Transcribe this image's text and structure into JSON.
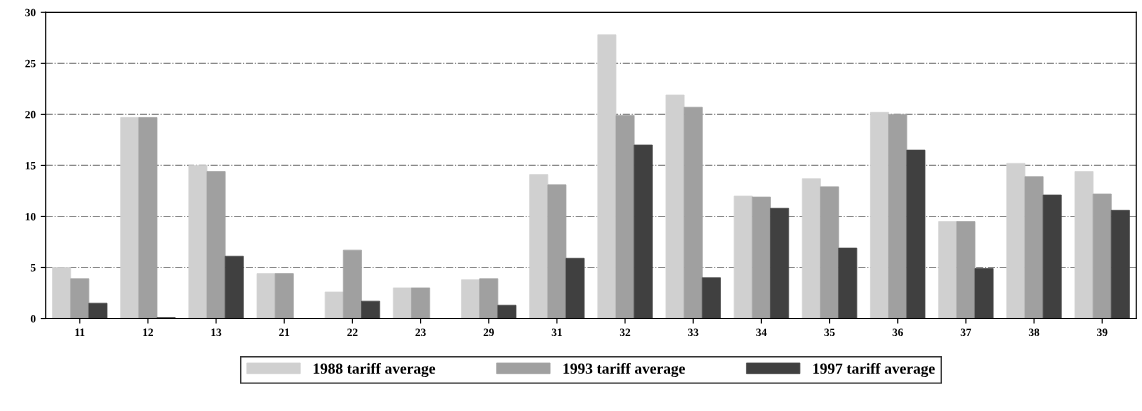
{
  "chart_data": {
    "type": "bar",
    "categories": [
      "11",
      "12",
      "13",
      "21",
      "22",
      "23",
      "29",
      "31",
      "32",
      "33",
      "34",
      "35",
      "36",
      "37",
      "38",
      "39"
    ],
    "series": [
      {
        "name": "1988 tariff average",
        "color": "#d0d0d0",
        "values": [
          5,
          19.7,
          15,
          4.4,
          2.6,
          3,
          3.8,
          14.1,
          27.8,
          21.9,
          12,
          13.7,
          20.2,
          9.5,
          15.2,
          14.4
        ]
      },
      {
        "name": "1993 tariff average",
        "color": "#a0a0a0",
        "values": [
          3.9,
          19.7,
          14.4,
          4.4,
          6.7,
          3,
          3.9,
          13.1,
          19.9,
          20.7,
          11.9,
          12.9,
          20,
          9.5,
          13.9,
          12.2
        ]
      },
      {
        "name": "1997 tariff average",
        "color": "#404040",
        "values": [
          1.5,
          0.1,
          6.1,
          0,
          1.7,
          0,
          1.3,
          5.9,
          17,
          4,
          10.8,
          6.9,
          16.5,
          4.9,
          12.1,
          10.6
        ]
      }
    ],
    "ylim": [
      0,
      30
    ],
    "yticks": [
      0,
      5,
      10,
      15,
      20,
      25,
      30
    ],
    "grid": "y",
    "legend": "bottom"
  }
}
